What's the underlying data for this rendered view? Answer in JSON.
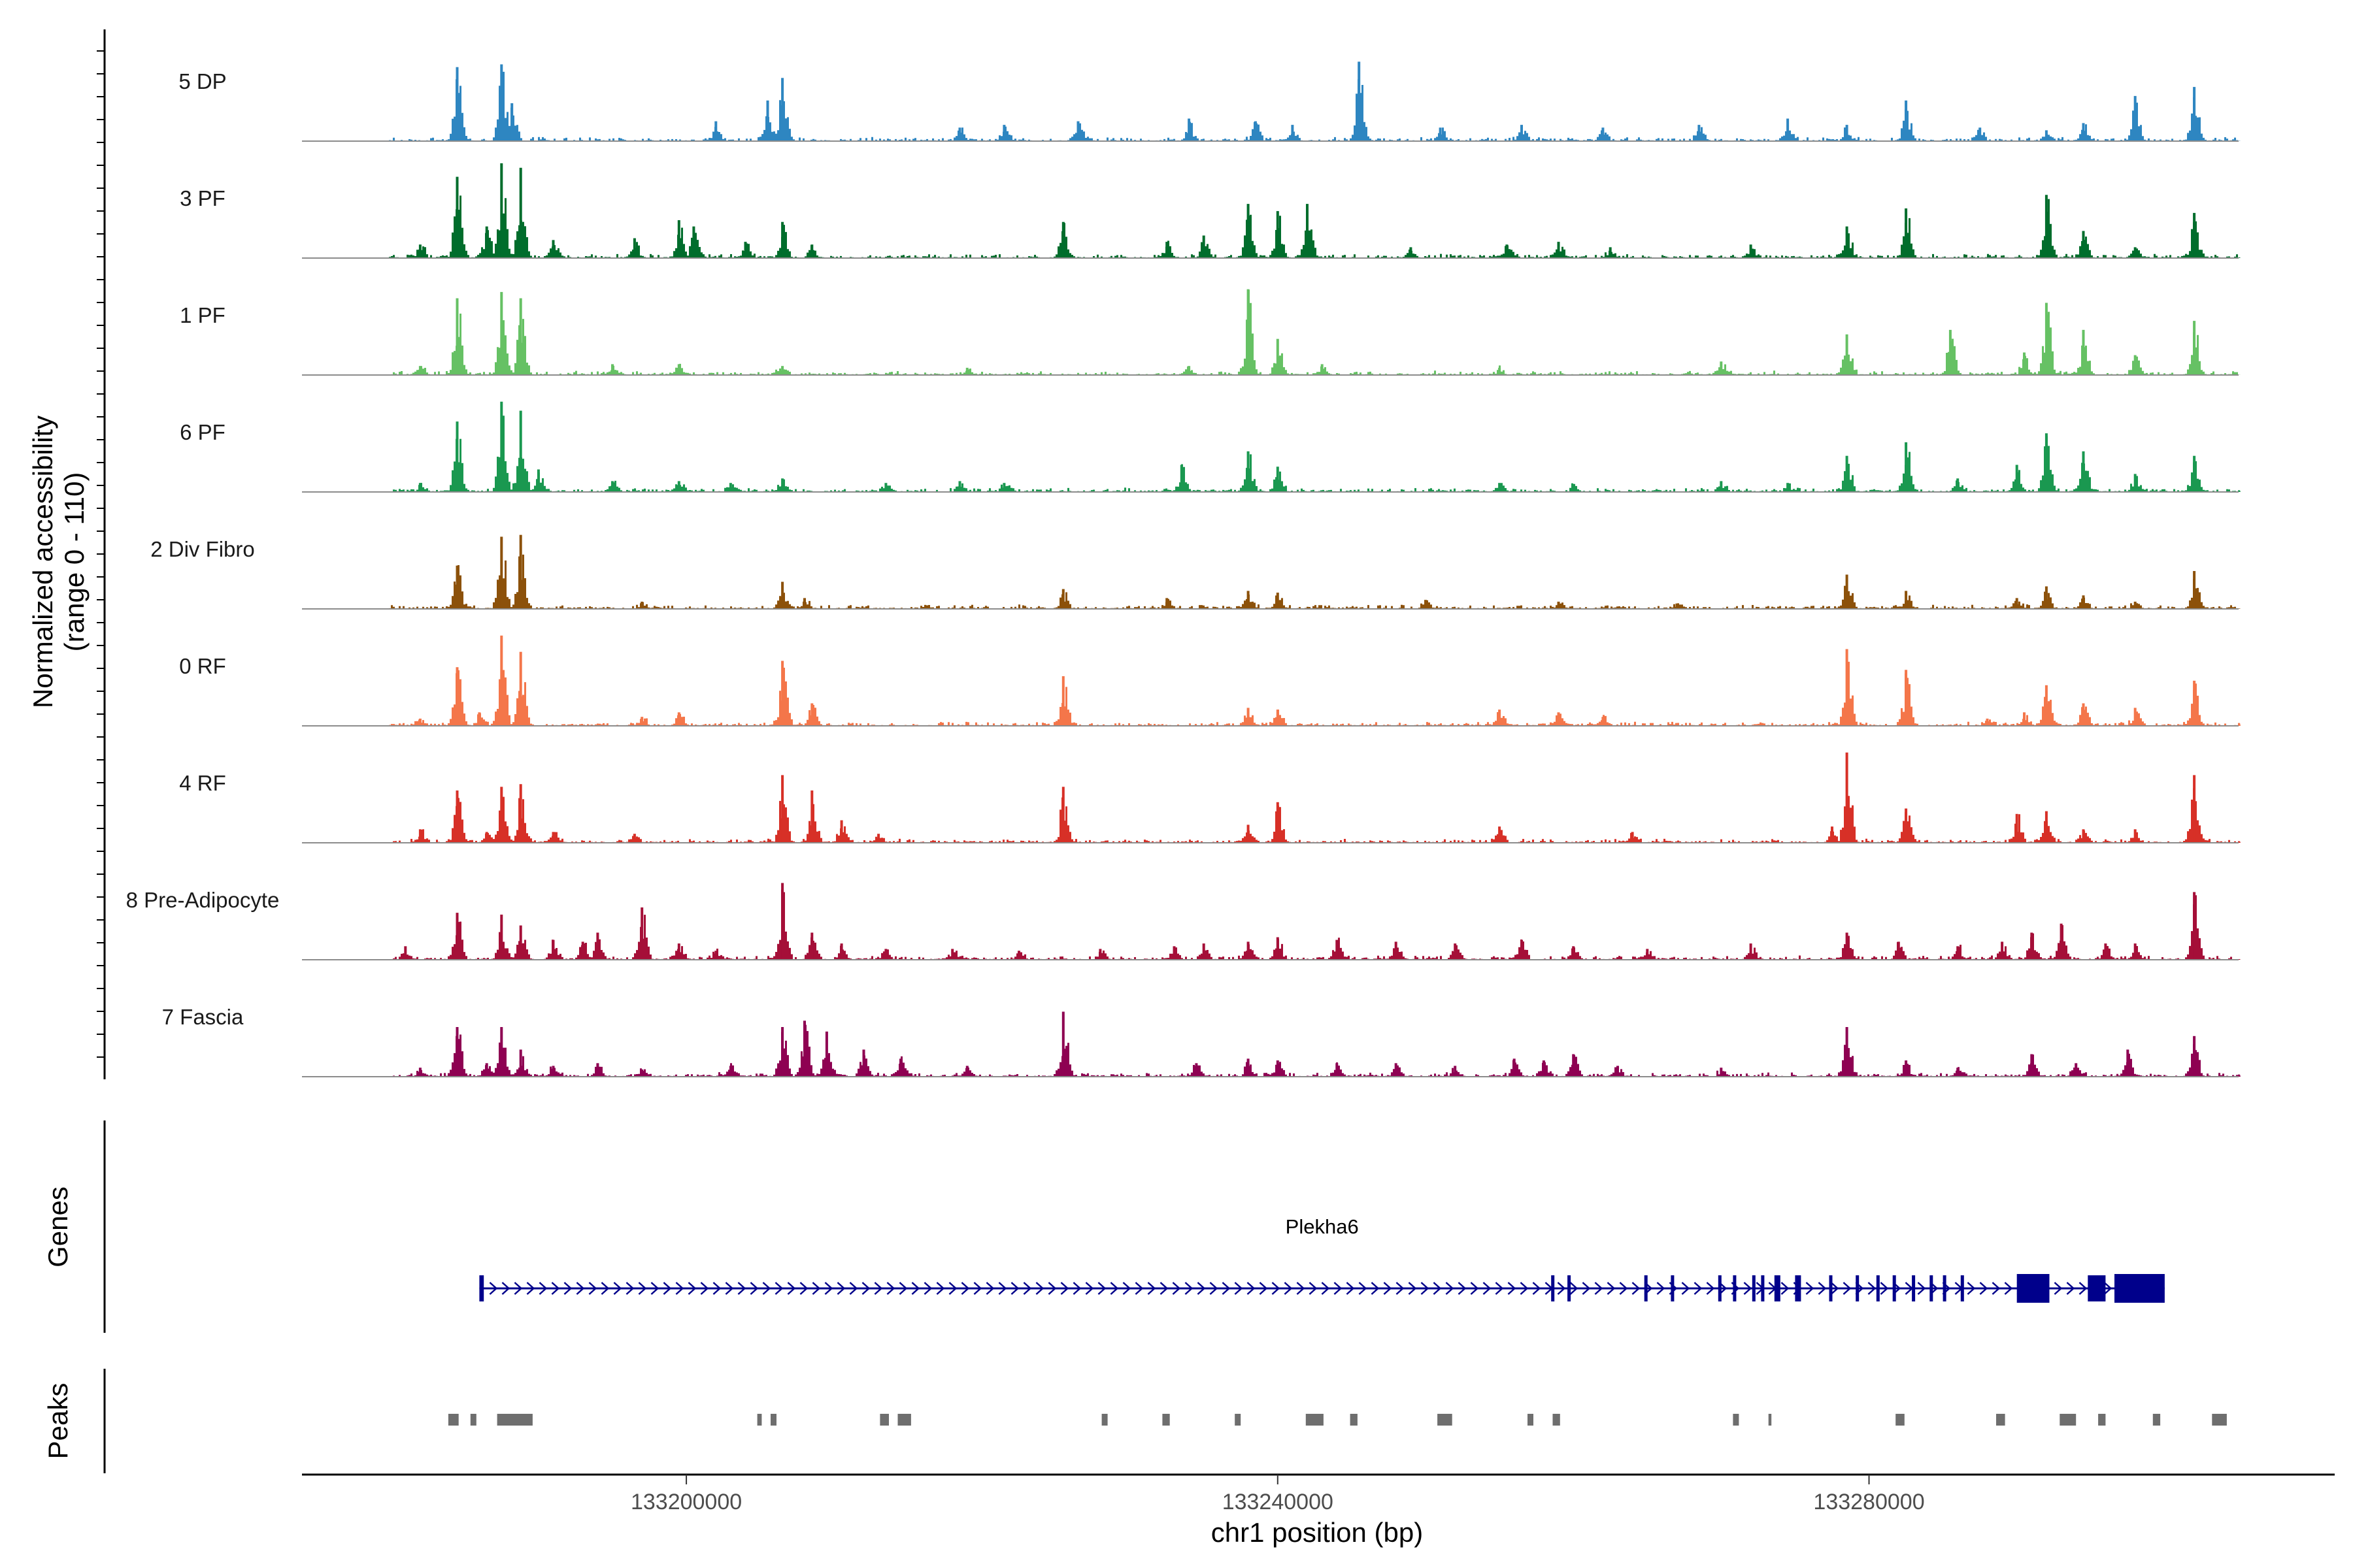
{
  "chart_data": {
    "type": "area",
    "title": "",
    "region": {
      "chromosome": "chr1",
      "start": 133174000,
      "end": 133311500
    },
    "xlabel": "chr1 position (bp)",
    "x_ticks": [
      133200000,
      133240000,
      133280000
    ],
    "x_tick_labels": [
      "133200000",
      "133240000",
      "133280000"
    ],
    "ylabel_line1": "Normalized accessibility",
    "ylabel_line2": "(range 0 - 110)",
    "ylim": [
      0,
      110
    ],
    "tracks": [
      {
        "name": "5 DP",
        "color": "#2E86C1",
        "peaks": [
          [
            133184500,
            82
          ],
          [
            133187500,
            85
          ],
          [
            133188200,
            42
          ],
          [
            133202000,
            22
          ],
          [
            133205500,
            45
          ],
          [
            133206500,
            70
          ],
          [
            133218500,
            15
          ],
          [
            133221500,
            18
          ],
          [
            133226500,
            22
          ],
          [
            133234000,
            25
          ],
          [
            133238500,
            22
          ],
          [
            133241000,
            18
          ],
          [
            133245500,
            88
          ],
          [
            133251000,
            15
          ],
          [
            133256500,
            18
          ],
          [
            133262000,
            15
          ],
          [
            133268500,
            18
          ],
          [
            133274500,
            25
          ],
          [
            133278500,
            18
          ],
          [
            133282500,
            45
          ],
          [
            133287500,
            15
          ],
          [
            133292000,
            12
          ],
          [
            133294500,
            20
          ],
          [
            133298000,
            50
          ],
          [
            133302000,
            60
          ]
        ]
      },
      {
        "name": "3 PF",
        "color": "#006D2C",
        "peaks": [
          [
            133182000,
            15
          ],
          [
            133184500,
            90
          ],
          [
            133186500,
            35
          ],
          [
            133187500,
            105
          ],
          [
            133188800,
            100
          ],
          [
            133191000,
            20
          ],
          [
            133196500,
            22
          ],
          [
            133199500,
            42
          ],
          [
            133200500,
            35
          ],
          [
            133204000,
            18
          ],
          [
            133206500,
            40
          ],
          [
            133208500,
            15
          ],
          [
            133225500,
            40
          ],
          [
            133232500,
            18
          ],
          [
            133235000,
            25
          ],
          [
            133238000,
            60
          ],
          [
            133240000,
            52
          ],
          [
            133242000,
            60
          ],
          [
            133249000,
            12
          ],
          [
            133255500,
            15
          ],
          [
            133259000,
            18
          ],
          [
            133262500,
            12
          ],
          [
            133272000,
            15
          ],
          [
            133278500,
            35
          ],
          [
            133282500,
            55
          ],
          [
            133292000,
            70
          ],
          [
            133294500,
            30
          ],
          [
            133298000,
            12
          ],
          [
            133302000,
            50
          ]
        ]
      },
      {
        "name": "1 PF",
        "color": "#66C164",
        "peaks": [
          [
            133182000,
            10
          ],
          [
            133184500,
            85
          ],
          [
            133187500,
            92
          ],
          [
            133188800,
            85
          ],
          [
            133195000,
            12
          ],
          [
            133199500,
            12
          ],
          [
            133206500,
            10
          ],
          [
            133219000,
            8
          ],
          [
            133234000,
            10
          ],
          [
            133238000,
            95
          ],
          [
            133240000,
            40
          ],
          [
            133243000,
            12
          ],
          [
            133255000,
            8
          ],
          [
            133270000,
            15
          ],
          [
            133278500,
            45
          ],
          [
            133285500,
            50
          ],
          [
            133290500,
            25
          ],
          [
            133292000,
            80
          ],
          [
            133294500,
            50
          ],
          [
            133298000,
            22
          ],
          [
            133302000,
            60
          ]
        ]
      },
      {
        "name": "6 PF",
        "color": "#1A9850",
        "peaks": [
          [
            133182000,
            10
          ],
          [
            133184500,
            78
          ],
          [
            133187500,
            100
          ],
          [
            133188800,
            90
          ],
          [
            133190000,
            25
          ],
          [
            133195000,
            12
          ],
          [
            133199500,
            12
          ],
          [
            133203000,
            10
          ],
          [
            133206500,
            15
          ],
          [
            133213500,
            10
          ],
          [
            133218500,
            12
          ],
          [
            133221500,
            10
          ],
          [
            133233500,
            30
          ],
          [
            133238000,
            45
          ],
          [
            133240000,
            28
          ],
          [
            133255000,
            10
          ],
          [
            133260000,
            8
          ],
          [
            133270000,
            12
          ],
          [
            133274500,
            10
          ],
          [
            133278500,
            40
          ],
          [
            133282500,
            55
          ],
          [
            133286000,
            15
          ],
          [
            133290000,
            30
          ],
          [
            133292000,
            65
          ],
          [
            133294500,
            45
          ],
          [
            133298000,
            20
          ],
          [
            133302000,
            40
          ]
        ]
      },
      {
        "name": "2 Div Fibro",
        "color": "#8C510A",
        "peaks": [
          [
            133184500,
            48
          ],
          [
            133187500,
            80
          ],
          [
            133188800,
            82
          ],
          [
            133197000,
            8
          ],
          [
            133206500,
            30
          ],
          [
            133208000,
            12
          ],
          [
            133225500,
            22
          ],
          [
            133232500,
            12
          ],
          [
            133238000,
            20
          ],
          [
            133240000,
            18
          ],
          [
            133250000,
            10
          ],
          [
            133259000,
            8
          ],
          [
            133267000,
            6
          ],
          [
            133278500,
            38
          ],
          [
            133282500,
            20
          ],
          [
            133290000,
            12
          ],
          [
            133292000,
            25
          ],
          [
            133294500,
            15
          ],
          [
            133298000,
            8
          ],
          [
            133302000,
            42
          ]
        ]
      },
      {
        "name": "0 RF",
        "color": "#F4764A",
        "peaks": [
          [
            133182000,
            8
          ],
          [
            133184500,
            65
          ],
          [
            133186000,
            15
          ],
          [
            133187500,
            100
          ],
          [
            133188800,
            82
          ],
          [
            133197000,
            10
          ],
          [
            133199500,
            15
          ],
          [
            133206500,
            72
          ],
          [
            133208500,
            25
          ],
          [
            133225500,
            55
          ],
          [
            133238000,
            20
          ],
          [
            133240000,
            18
          ],
          [
            133255000,
            18
          ],
          [
            133259000,
            15
          ],
          [
            133262000,
            10
          ],
          [
            133278500,
            85
          ],
          [
            133282500,
            62
          ],
          [
            133288000,
            8
          ],
          [
            133290500,
            15
          ],
          [
            133292000,
            45
          ],
          [
            133294500,
            25
          ],
          [
            133298000,
            20
          ],
          [
            133302000,
            50
          ]
        ]
      },
      {
        "name": "4 RF",
        "color": "#D73027",
        "peaks": [
          [
            133182000,
            15
          ],
          [
            133184500,
            58
          ],
          [
            133186500,
            12
          ],
          [
            133187500,
            62
          ],
          [
            133188800,
            65
          ],
          [
            133191000,
            12
          ],
          [
            133196500,
            10
          ],
          [
            133206500,
            75
          ],
          [
            133208500,
            58
          ],
          [
            133210500,
            25
          ],
          [
            133213000,
            10
          ],
          [
            133225500,
            62
          ],
          [
            133238000,
            20
          ],
          [
            133240000,
            45
          ],
          [
            133255000,
            18
          ],
          [
            133264000,
            12
          ],
          [
            133277500,
            18
          ],
          [
            133278500,
            100
          ],
          [
            133282500,
            38
          ],
          [
            133290000,
            32
          ],
          [
            133292000,
            35
          ],
          [
            133294500,
            15
          ],
          [
            133298000,
            15
          ],
          [
            133302000,
            75
          ]
        ]
      },
      {
        "name": "8 Pre-Adipocyte",
        "color": "#A50F38",
        "peaks": [
          [
            133181000,
            15
          ],
          [
            133184500,
            52
          ],
          [
            133187500,
            50
          ],
          [
            133188800,
            38
          ],
          [
            133191000,
            22
          ],
          [
            133193000,
            20
          ],
          [
            133194000,
            30
          ],
          [
            133197000,
            58
          ],
          [
            133199500,
            18
          ],
          [
            133202000,
            10
          ],
          [
            133206500,
            85
          ],
          [
            133208500,
            30
          ],
          [
            133210500,
            18
          ],
          [
            133213500,
            12
          ],
          [
            133218000,
            12
          ],
          [
            133222500,
            10
          ],
          [
            133228000,
            12
          ],
          [
            133233000,
            15
          ],
          [
            133235000,
            18
          ],
          [
            133238000,
            20
          ],
          [
            133240000,
            25
          ],
          [
            133244000,
            22
          ],
          [
            133248000,
            20
          ],
          [
            133252000,
            18
          ],
          [
            133256500,
            22
          ],
          [
            133260000,
            15
          ],
          [
            133265000,
            12
          ],
          [
            133272000,
            18
          ],
          [
            133278500,
            30
          ],
          [
            133282000,
            20
          ],
          [
            133286000,
            15
          ],
          [
            133289000,
            20
          ],
          [
            133291000,
            30
          ],
          [
            133293000,
            40
          ],
          [
            133296000,
            18
          ],
          [
            133298000,
            18
          ],
          [
            133302000,
            75
          ]
        ]
      },
      {
        "name": "7 Fascia",
        "color": "#8E0152",
        "peaks": [
          [
            133182000,
            10
          ],
          [
            133184500,
            55
          ],
          [
            133186500,
            15
          ],
          [
            133187500,
            55
          ],
          [
            133188800,
            30
          ],
          [
            133191000,
            12
          ],
          [
            133194000,
            15
          ],
          [
            133197000,
            8
          ],
          [
            133203000,
            12
          ],
          [
            133206500,
            55
          ],
          [
            133208000,
            62
          ],
          [
            133209500,
            50
          ],
          [
            133212000,
            30
          ],
          [
            133214500,
            20
          ],
          [
            133219000,
            12
          ],
          [
            133225500,
            72
          ],
          [
            133234500,
            15
          ],
          [
            133238000,
            20
          ],
          [
            133240000,
            18
          ],
          [
            133244000,
            15
          ],
          [
            133248000,
            15
          ],
          [
            133252000,
            12
          ],
          [
            133256000,
            20
          ],
          [
            133258000,
            18
          ],
          [
            133260000,
            25
          ],
          [
            133263000,
            12
          ],
          [
            133270000,
            10
          ],
          [
            133278500,
            55
          ],
          [
            133282500,
            18
          ],
          [
            133286000,
            10
          ],
          [
            133291000,
            25
          ],
          [
            133294000,
            15
          ],
          [
            133297500,
            30
          ],
          [
            133302000,
            45
          ]
        ]
      }
    ],
    "genes": [
      {
        "name": "Plekha6",
        "strand": "+",
        "start": 133186000,
        "end": 133300000,
        "color": "#00008B",
        "exons": [
          [
            133186000,
            133186300
          ],
          [
            133258500,
            133258700
          ],
          [
            133259600,
            133259800
          ],
          [
            133264800,
            133265000
          ],
          [
            133266600,
            133266800
          ],
          [
            133269800,
            133270000
          ],
          [
            133270800,
            133271000
          ],
          [
            133272100,
            133272300
          ],
          [
            133272700,
            133272900
          ],
          [
            133273600,
            133274000
          ],
          [
            133275000,
            133275400
          ],
          [
            133277300,
            133277500
          ],
          [
            133279100,
            133279300
          ],
          [
            133280500,
            133280700
          ],
          [
            133281600,
            133281800
          ],
          [
            133282900,
            133283100
          ],
          [
            133284100,
            133284300
          ],
          [
            133285000,
            133285200
          ],
          [
            133286200,
            133286400
          ],
          [
            133290000,
            133292200
          ],
          [
            133294800,
            133296000
          ],
          [
            133296600,
            133300000
          ]
        ]
      }
    ],
    "peak_regions": [
      [
        133183900,
        133184600
      ],
      [
        133185400,
        133185800
      ],
      [
        133187200,
        133189600
      ],
      [
        133204800,
        133205100
      ],
      [
        133205700,
        133206100
      ],
      [
        133213100,
        133213700
      ],
      [
        133214300,
        133215200
      ],
      [
        133228100,
        133228500
      ],
      [
        133232200,
        133232700
      ],
      [
        133237100,
        133237500
      ],
      [
        133241900,
        133243100
      ],
      [
        133244900,
        133245400
      ],
      [
        133250800,
        133251800
      ],
      [
        133256900,
        133257300
      ],
      [
        133258600,
        133259100
      ],
      [
        133270800,
        133271200
      ],
      [
        133273200,
        133273400
      ],
      [
        133281800,
        133282400
      ],
      [
        133288600,
        133289200
      ],
      [
        133292900,
        133294000
      ],
      [
        133295500,
        133296000
      ],
      [
        133299200,
        133299700
      ],
      [
        133303200,
        133304200
      ]
    ],
    "panel_labels": {
      "genes": "Genes",
      "peaks": "Peaks"
    }
  }
}
